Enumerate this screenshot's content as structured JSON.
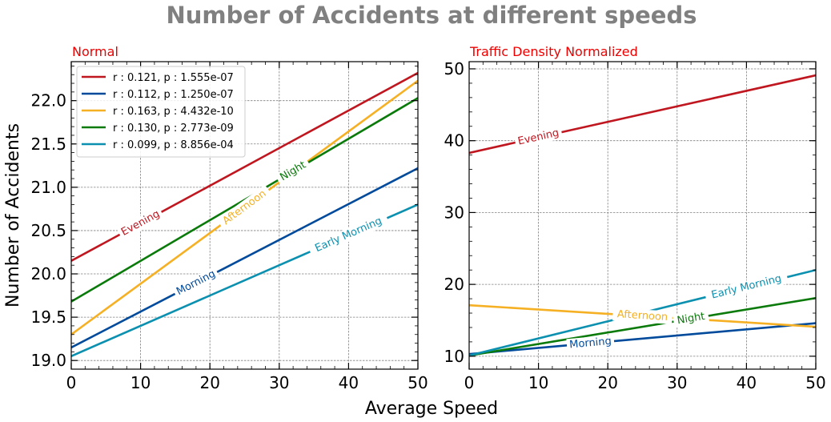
{
  "figure": {
    "title": "Number of Accidents at different speeds",
    "xlabel": "Average Speed",
    "title_color": "#808080"
  },
  "chart_data": [
    {
      "type": "line",
      "subtitle": "Normal",
      "subtitle_color": "#ee0000",
      "ylabel": "Number of Accidents",
      "xlim": [
        0,
        50
      ],
      "ylim": [
        18.9,
        22.45
      ],
      "xticks": [
        0,
        10,
        20,
        30,
        40,
        50
      ],
      "yticks": [
        19.0,
        19.5,
        20.0,
        20.5,
        21.0,
        21.5,
        22.0
      ],
      "ytick_labels": [
        "19.0",
        "19.5",
        "20.0",
        "20.5",
        "21.0",
        "21.5",
        "22.0"
      ],
      "grid": true,
      "legend_position": "top-left",
      "series": [
        {
          "name": "r : 0.121, p : 1.555e-07",
          "label": "Evening",
          "color": "#c0161f",
          "x": [
            0,
            50
          ],
          "y": [
            20.15,
            22.32
          ],
          "label_x": 10
        },
        {
          "name": "r : 0.112, p : 1.250e-07",
          "label": "Morning",
          "color": "#004a9c",
          "x": [
            0,
            50
          ],
          "y": [
            19.15,
            21.22
          ],
          "label_x": 18
        },
        {
          "name": "r : 0.163, p : 4.432e-10",
          "label": "Afternoon",
          "color": "#f5b024",
          "x": [
            0,
            50
          ],
          "y": [
            19.3,
            22.23
          ],
          "label_x": 25
        },
        {
          "name": "r : 0.130, p : 2.773e-09",
          "label": "Night",
          "color": "#0a7a0a",
          "x": [
            0,
            50
          ],
          "y": [
            19.68,
            22.03
          ],
          "label_x": 32
        },
        {
          "name": "r : 0.099, p : 8.856e-04",
          "label": "Early Morning",
          "color": "#0b90b0",
          "x": [
            0,
            50
          ],
          "y": [
            19.05,
            20.8
          ],
          "label_x": 40
        }
      ]
    },
    {
      "type": "line",
      "subtitle": "Traffic Density Normalized",
      "subtitle_color": "#ee0000",
      "ylabel": "",
      "xlim": [
        0,
        50
      ],
      "ylim": [
        8.2,
        51
      ],
      "xticks": [
        0,
        10,
        20,
        30,
        40,
        50
      ],
      "yticks": [
        10,
        20,
        30,
        40,
        50
      ],
      "ytick_labels": [
        "10",
        "20",
        "30",
        "40",
        "50"
      ],
      "grid": true,
      "legend_position": "none",
      "series": [
        {
          "name": "Evening",
          "label": "Evening",
          "color": "#c0161f",
          "x": [
            0,
            50
          ],
          "y": [
            38.3,
            49.1
          ],
          "label_x": 10
        },
        {
          "name": "Morning",
          "label": "Morning",
          "color": "#004a9c",
          "x": [
            0,
            50
          ],
          "y": [
            10.3,
            14.6
          ],
          "label_x": 17.5
        },
        {
          "name": "Afternoon",
          "label": "Afternoon",
          "color": "#f5b024",
          "x": [
            0,
            50
          ],
          "y": [
            17.1,
            14.1
          ],
          "label_x": 25
        },
        {
          "name": "Night",
          "label": "Night",
          "color": "#0a7a0a",
          "x": [
            0,
            50
          ],
          "y": [
            10.1,
            18.1
          ],
          "label_x": 32
        },
        {
          "name": "Early Morning",
          "label": "Early Morning",
          "color": "#0b90b0",
          "x": [
            0,
            50
          ],
          "y": [
            10.1,
            22.0
          ],
          "label_x": 40
        }
      ]
    }
  ]
}
